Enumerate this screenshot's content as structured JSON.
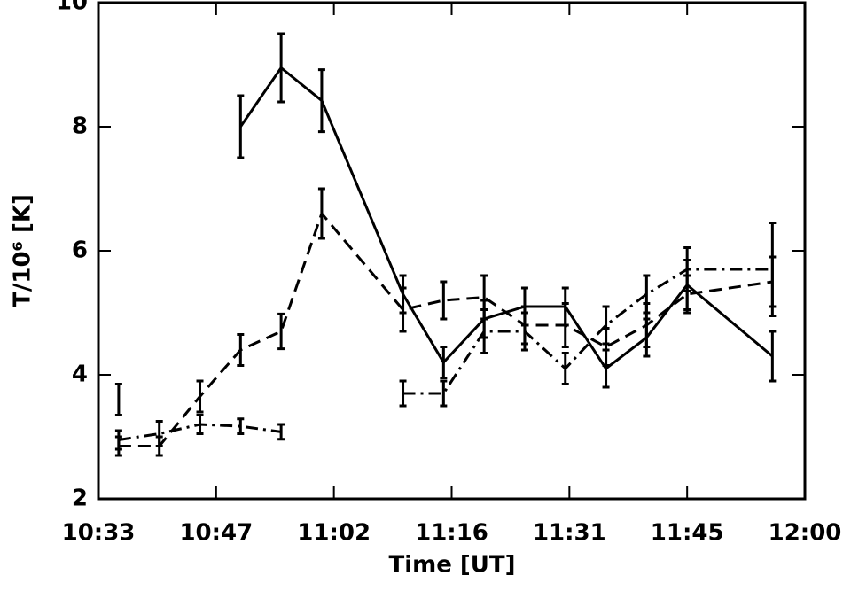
{
  "chart_data": {
    "type": "line",
    "xlabel": "Time [UT]",
    "ylabel": "T/10⁶ [K]",
    "x": [
      635.5,
      640.5,
      645.5,
      650.5,
      655.5,
      660.5,
      670.5,
      675.5,
      680.5,
      685.5,
      690.5,
      695.5,
      700.5,
      705.5,
      716
    ],
    "series": [
      {
        "color": "#000000",
        "dash": "solid",
        "values": [
          3.6,
          null,
          null,
          8.0,
          8.95,
          8.42,
          5.3,
          4.2,
          4.9,
          5.1,
          5.1,
          4.1,
          4.6,
          5.45,
          4.3
        ],
        "errors": [
          0.25,
          null,
          null,
          0.5,
          0.55,
          0.5,
          0.3,
          0.25,
          0.3,
          0.3,
          0.3,
          0.3,
          0.3,
          0.4,
          0.4
        ]
      },
      {
        "color": "#000000",
        "dash": "dashed",
        "values": [
          2.85,
          2.85,
          3.65,
          4.4,
          4.7,
          6.6,
          5.05,
          5.2,
          5.25,
          4.8,
          4.8,
          4.45,
          4.8,
          5.3,
          5.5
        ],
        "errors": [
          0.15,
          0.15,
          0.25,
          0.25,
          0.28,
          0.4,
          0.35,
          0.3,
          0.35,
          0.3,
          0.35,
          0.3,
          0.35,
          0.3,
          0.4
        ]
      },
      {
        "color": "#000000",
        "dash": "dashdot",
        "values": [
          2.95,
          3.05,
          3.2,
          3.17,
          3.08,
          null,
          3.7,
          3.7,
          4.7,
          4.7,
          4.1,
          4.8,
          5.3,
          5.7,
          5.7
        ],
        "errors": [
          0.15,
          0.2,
          0.15,
          0.12,
          0.12,
          null,
          0.2,
          0.2,
          0.35,
          0.3,
          0.25,
          0.3,
          0.3,
          0.35,
          0.75
        ]
      }
    ],
    "xlim": [
      633,
      720
    ],
    "xticks": [
      {
        "value": 633,
        "label": "10:33"
      },
      {
        "value": 647.5,
        "label": "10:47"
      },
      {
        "value": 662,
        "label": "11:02"
      },
      {
        "value": 676.5,
        "label": "11:16"
      },
      {
        "value": 691,
        "label": "11:31"
      },
      {
        "value": 705.5,
        "label": "11:45"
      },
      {
        "value": 720,
        "label": "12:00"
      }
    ],
    "ylim": [
      2,
      10
    ],
    "yticks": [
      2,
      4,
      6,
      8,
      10
    ]
  }
}
